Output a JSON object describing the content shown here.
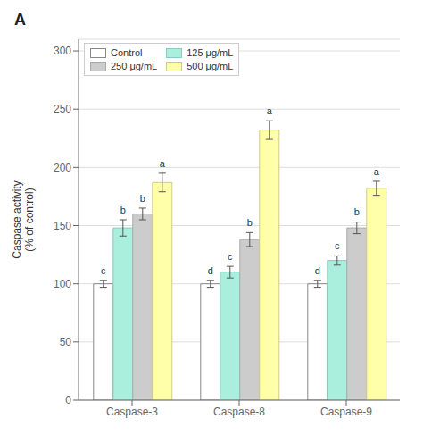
{
  "chart_data": {
    "type": "bar",
    "title": "A",
    "categories": [
      "Caspase-3",
      "Caspase-8",
      "Caspase-9"
    ],
    "series": [
      {
        "name": "Control",
        "color": "#ffffff",
        "edge_color": "#888888",
        "values": [
          100,
          100,
          100
        ],
        "errors": [
          3,
          3,
          3
        ],
        "annotations": [
          "c",
          "d",
          "d"
        ]
      },
      {
        "name": "125 μg/mL",
        "color": "#aaeedd",
        "edge_color": "#88ccbb",
        "values": [
          148,
          110,
          120
        ],
        "errors": [
          7,
          5,
          4
        ],
        "annotations": [
          "b",
          "c",
          "c"
        ]
      },
      {
        "name": "250 μg/mL",
        "color": "#cccccc",
        "edge_color": "#aaaaaa",
        "values": [
          160,
          138,
          148
        ],
        "errors": [
          5,
          6,
          5
        ],
        "annotations": [
          "b",
          "b",
          "b"
        ]
      },
      {
        "name": "500 μg/mL",
        "color": "#ffffaa",
        "edge_color": "#cccc88",
        "values": [
          187,
          232,
          182
        ],
        "errors": [
          8,
          8,
          6
        ],
        "annotations": [
          "a",
          "a",
          "a"
        ]
      }
    ],
    "ylabel": "Caspase activity\n(% of control)",
    "ylim": [
      0,
      310
    ],
    "yticks": [
      0,
      50,
      100,
      150,
      200,
      250,
      300
    ],
    "grid": true,
    "legend": "upper left"
  }
}
